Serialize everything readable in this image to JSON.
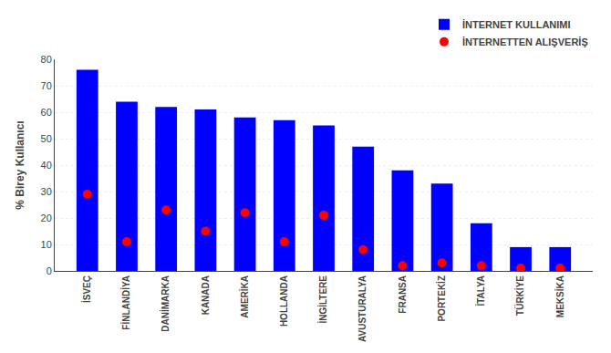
{
  "chart_data": {
    "type": "bar",
    "categories": [
      "İSVEÇ",
      "FİNLANDİYA",
      "DANİMARKA",
      "KANADA",
      "AMERİKA",
      "HOLLANDA",
      "İNGİLTERE",
      "AVUSTURALYA",
      "FRANSA",
      "PORTEKİZ",
      "İTALYA",
      "TÜRKİYE",
      "MEKSİKA"
    ],
    "series": [
      {
        "name": "İNTERNET KULLANIMI",
        "type": "bar",
        "color": "#0000FF",
        "values": [
          76,
          64,
          62,
          61,
          58,
          57,
          55,
          47,
          38,
          33,
          18,
          9,
          9
        ]
      },
      {
        "name": "İNTERNETTEN ALIŞVERİŞ",
        "type": "scatter",
        "marker": "circle",
        "color": "#FF0000",
        "values": [
          29,
          11,
          23,
          15,
          22,
          11,
          21,
          8,
          2,
          3,
          2,
          1,
          1
        ]
      }
    ],
    "ylabel": "% Birey Kullanıcı",
    "ylim": [
      0,
      80
    ],
    "yticks": [
      0,
      10,
      20,
      30,
      40,
      50,
      60,
      70,
      80
    ],
    "grid": true,
    "legend": "top right"
  }
}
